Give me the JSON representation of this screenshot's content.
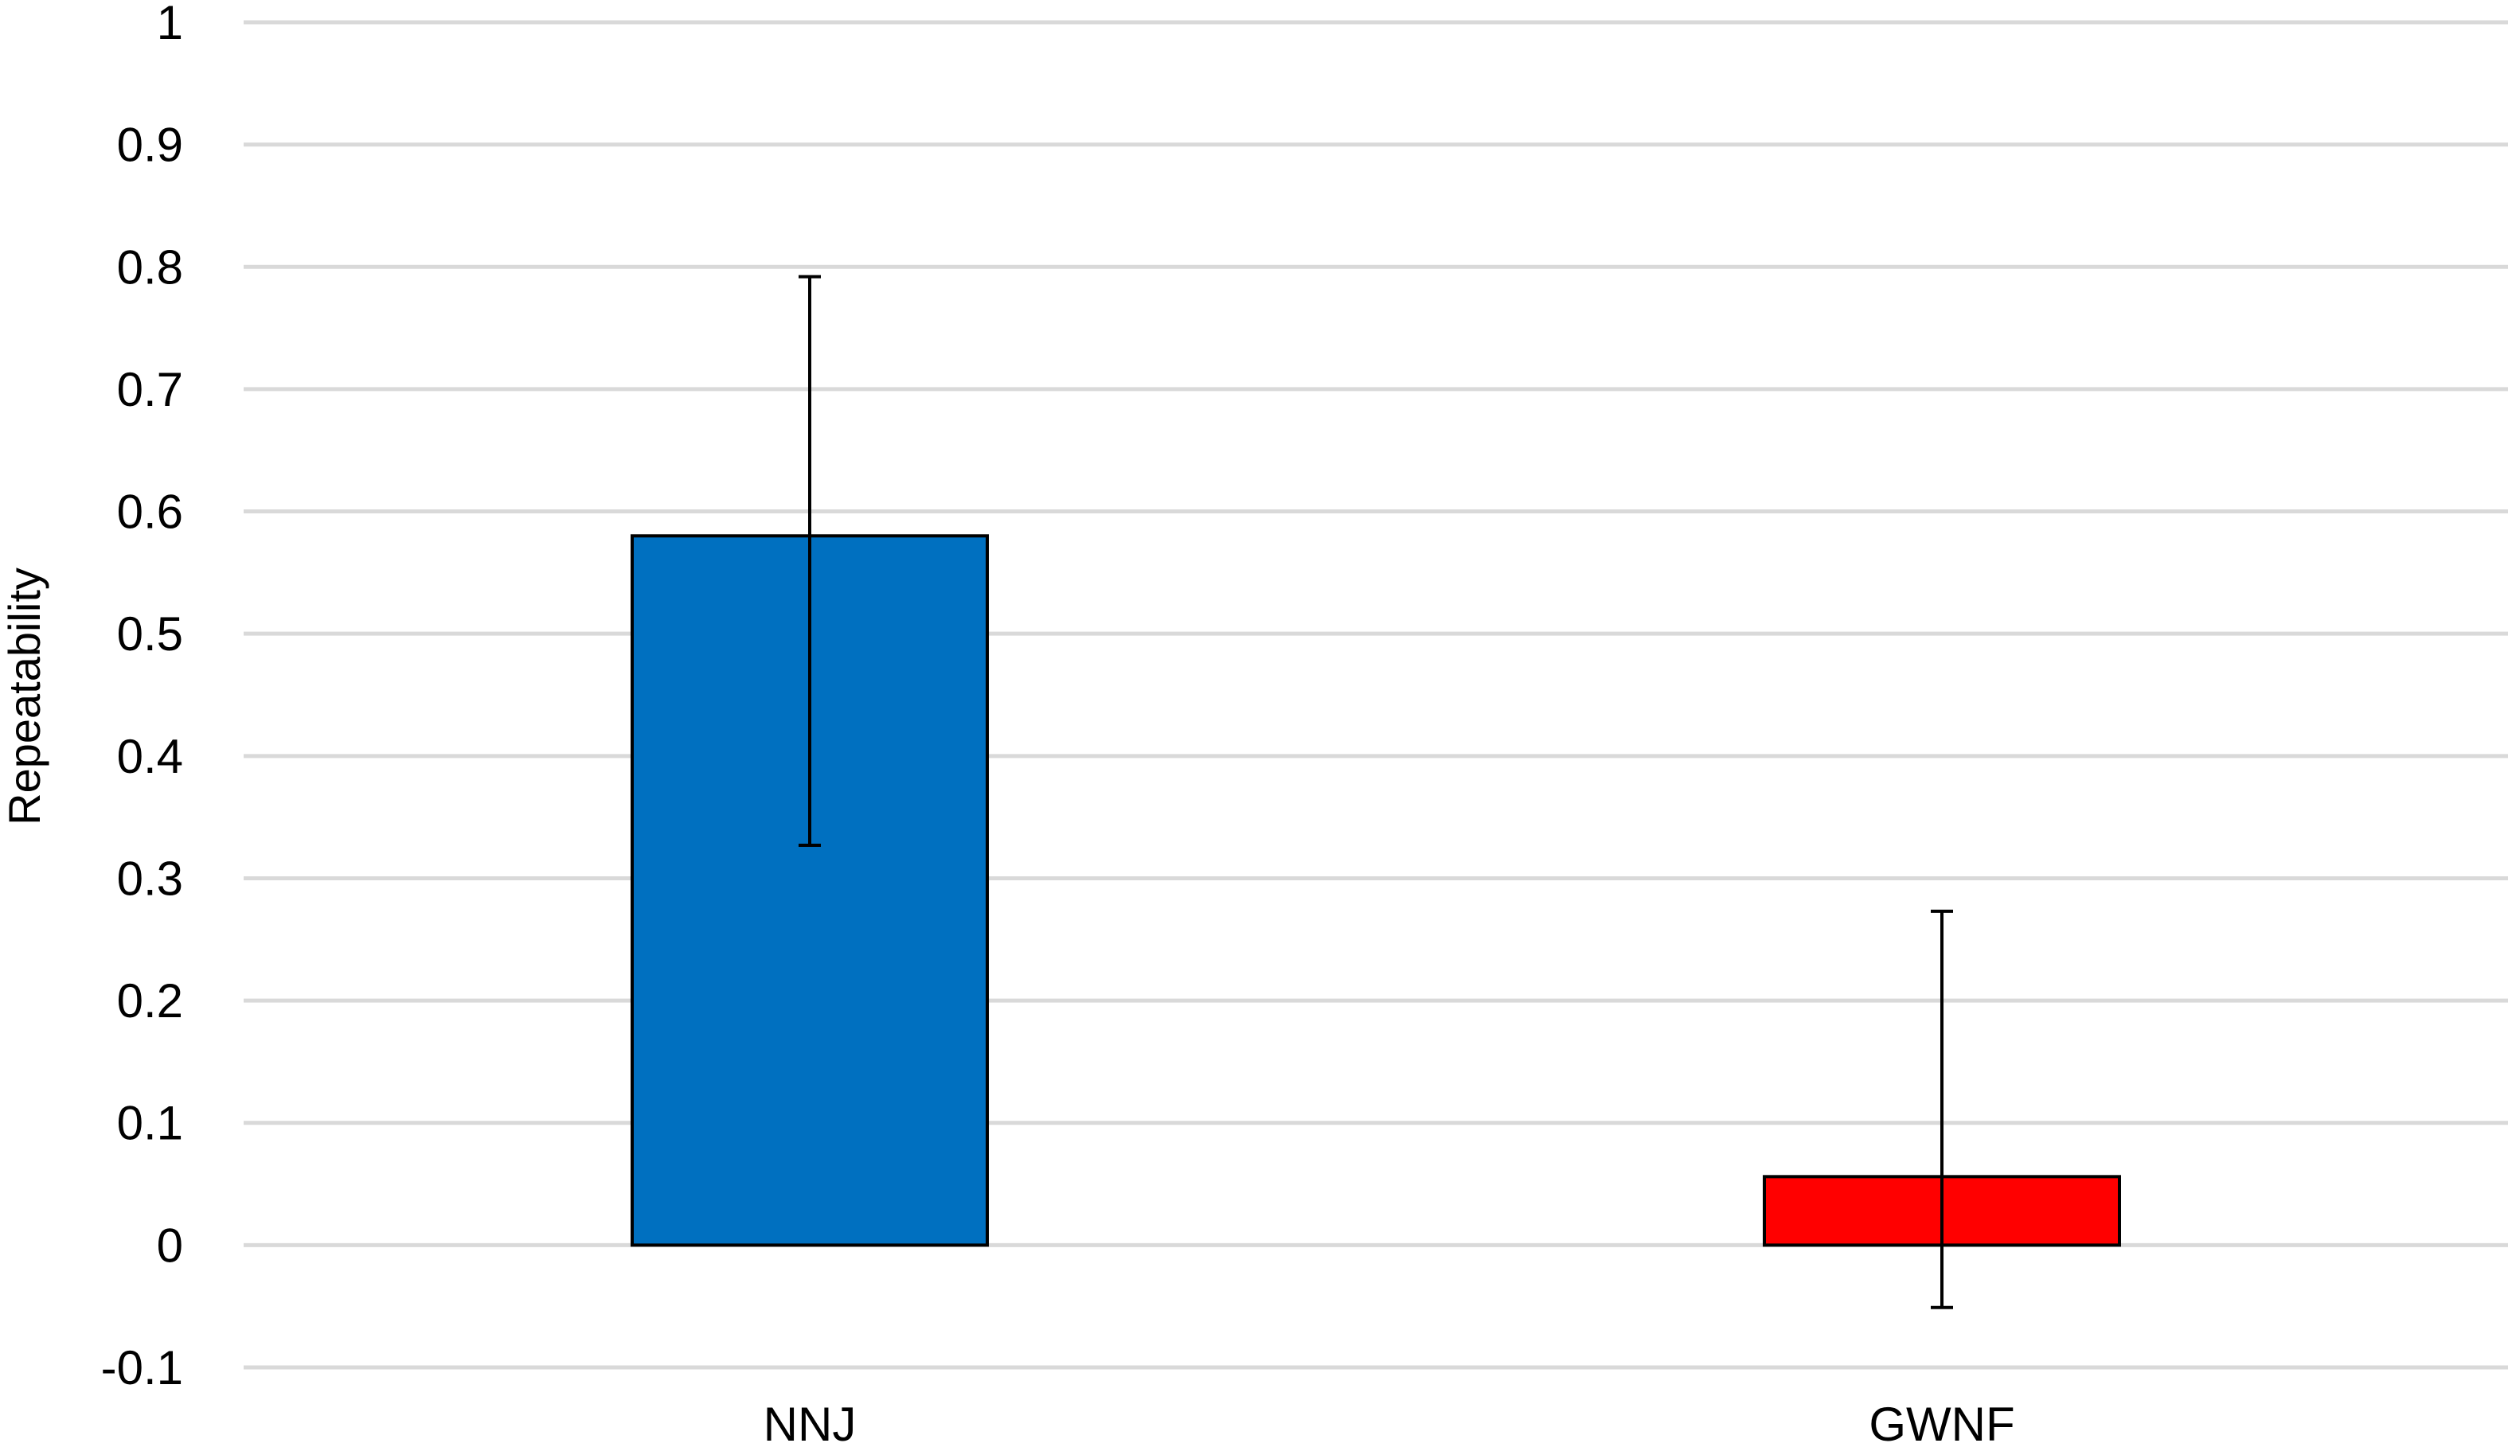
{
  "chart_data": {
    "type": "bar",
    "title": "",
    "xlabel": "",
    "ylabel": "Repeatability",
    "categories": [
      "NNJ",
      "GWNF"
    ],
    "values": [
      0.58,
      0.056
    ],
    "error_low": [
      0.327,
      -0.051
    ],
    "error_high": [
      0.792,
      0.273
    ],
    "bar_colors": [
      "#0070c0",
      "#ff0000"
    ],
    "ylim": [
      -0.1,
      1
    ],
    "yticks": [
      "-0.1",
      "0",
      "0.1",
      "0.2",
      "0.3",
      "0.4",
      "0.5",
      "0.6",
      "0.7",
      "0.8",
      "0.9",
      "1"
    ],
    "grid": true,
    "legend": "none"
  }
}
